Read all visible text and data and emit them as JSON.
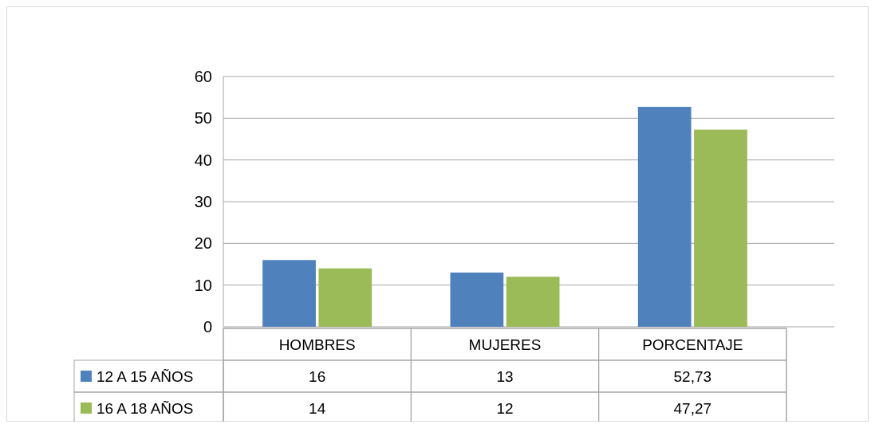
{
  "chart_data": {
    "type": "bar",
    "categories": [
      "HOMBRES",
      "MUJERES",
      "PORCENTAJE"
    ],
    "series": [
      {
        "name": "12 A 15 AÑOS",
        "color": "#4f81bd",
        "values": [
          16,
          13,
          52.73
        ],
        "value_labels": [
          "16",
          "13",
          "52,73"
        ]
      },
      {
        "name": "16 A 18 AÑOS",
        "color": "#9bbb59",
        "values": [
          14,
          12,
          47.27
        ],
        "value_labels": [
          "14",
          "12",
          "47,27"
        ]
      }
    ],
    "ylim": [
      0,
      60
    ],
    "yticks": [
      0,
      10,
      20,
      30,
      40,
      50,
      60
    ],
    "grid": "y",
    "legend": "bottom"
  }
}
